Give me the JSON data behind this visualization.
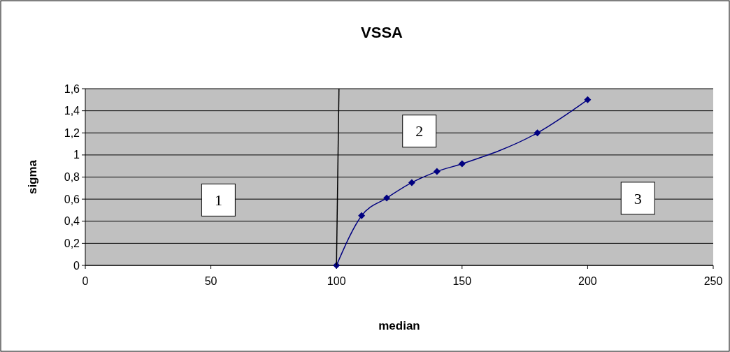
{
  "chart_data": {
    "type": "line",
    "title": "VSSA",
    "xlabel": "median",
    "ylabel": "sigma",
    "xlim": [
      0,
      250
    ],
    "xticks": [
      0,
      50,
      100,
      150,
      200,
      250
    ],
    "ylim": [
      0,
      1.6
    ],
    "yticks": [
      0,
      {
        "value": 0.2,
        "label": "0,2"
      },
      {
        "value": 0.4,
        "label": "0,4"
      },
      {
        "value": 0.6,
        "label": "0,6"
      },
      {
        "value": 0.8,
        "label": "0,8"
      },
      1,
      {
        "value": 1.2,
        "label": "1,2"
      },
      {
        "value": 1.4,
        "label": "1,4"
      },
      {
        "value": 1.6,
        "label": "1,6"
      }
    ],
    "grid": "y",
    "series": [
      {
        "color": "#000080",
        "marker": "diamond",
        "x": [
          100,
          110,
          120,
          130,
          140,
          150,
          180,
          200
        ],
        "values": [
          0,
          0.45,
          0.61,
          0.75,
          0.85,
          0.92,
          1.2,
          1.5
        ]
      },
      {
        "color": "#000000",
        "marker": "none",
        "x": [
          100,
          101
        ],
        "values": [
          0,
          1.6
        ]
      }
    ],
    "annotations": [
      "1",
      "2",
      "3"
    ]
  }
}
